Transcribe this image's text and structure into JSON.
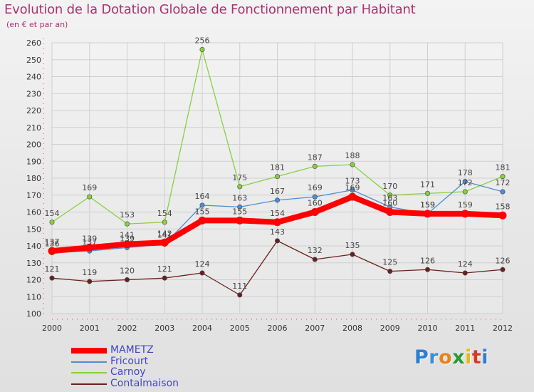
{
  "title": "Evolution de la Dotation Globale de Fonctionnement par Habitant",
  "subtitle": "(en € et par an)",
  "logo": {
    "letters": [
      "P",
      "r",
      "o",
      "x",
      "i",
      "t",
      "i"
    ],
    "colors": [
      "#2a7fd4",
      "#3a8fd8",
      "#e8821a",
      "#2a9a3a",
      "#e8b81a",
      "#d43a2a",
      "#2a7fd4"
    ]
  },
  "chart_data": {
    "type": "line",
    "title": "Evolution de la Dotation Globale de Fonctionnement par Habitant",
    "subtitle": "(en € et par an)",
    "categories": [
      "2000",
      "2001",
      "2002",
      "2003",
      "2004",
      "2005",
      "2006",
      "2007",
      "2008",
      "2009",
      "2010",
      "2011",
      "2012"
    ],
    "ylim": [
      100,
      260
    ],
    "yticks": [
      "100",
      "110",
      "120",
      "130",
      "140",
      "150",
      "160",
      "170",
      "180",
      "190",
      "200",
      "210",
      "220",
      "230",
      "240",
      "250",
      "260"
    ],
    "grid": true,
    "series": [
      {
        "name": "MAMETZ",
        "color": "#ff0000",
        "values": [
          137,
          139,
          141,
          142,
          155,
          155,
          154,
          160,
          169,
          160,
          159,
          159,
          158
        ],
        "labels": [
          "137",
          "139",
          "141",
          "142",
          "155",
          "155",
          "154",
          "160",
          "169",
          "160",
          "159",
          "159",
          "158"
        ]
      },
      {
        "name": "Fricourt",
        "color": "#4e8ed0",
        "values": [
          136,
          137,
          139,
          141,
          164,
          163,
          167,
          169,
          173,
          163,
          159,
          178,
          172
        ],
        "labels": [
          "136",
          "137",
          "139",
          "141",
          "164",
          "163",
          "167",
          "169",
          "173",
          "163",
          "159",
          "178",
          "172"
        ]
      },
      {
        "name": "Carnoy",
        "color": "#88d040",
        "values": [
          154,
          169,
          153,
          154,
          256,
          175,
          181,
          187,
          188,
          170,
          171,
          172,
          181
        ],
        "labels": [
          "154",
          "169",
          "153",
          "154",
          "256",
          "175",
          "181",
          "187",
          "188",
          "170",
          "171",
          "172",
          "181"
        ]
      },
      {
        "name": "Contalmaison",
        "color": "#6b1f1f",
        "values": [
          121,
          119,
          120,
          121,
          124,
          111,
          143,
          132,
          135,
          125,
          126,
          124,
          126
        ],
        "labels": [
          "121",
          "119",
          "120",
          "121",
          "124",
          "111",
          "143",
          "132",
          "135",
          "125",
          "126",
          "124",
          "126"
        ]
      }
    ]
  }
}
